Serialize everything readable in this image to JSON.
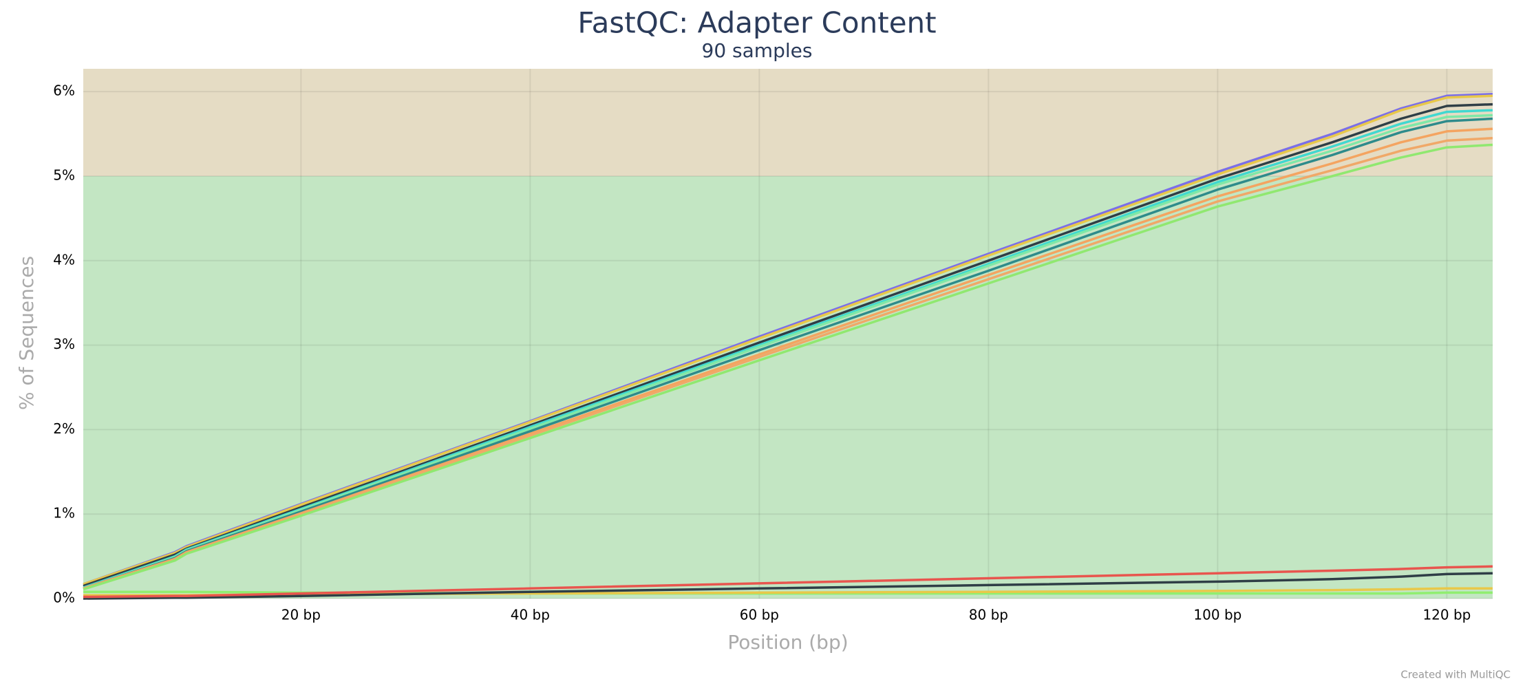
{
  "chart_data": {
    "type": "line",
    "title": "FastQC: Adapter Content",
    "subtitle": "90 samples",
    "x_label": "Position (bp)",
    "y_label": "% of Sequences",
    "footer": "Created with MultiQC",
    "xlim": [
      1,
      124
    ],
    "ylim": [
      0,
      6.27
    ],
    "xticks": [
      {
        "value": 20,
        "label": "20 bp"
      },
      {
        "value": 40,
        "label": "40 bp"
      },
      {
        "value": 60,
        "label": "60 bp"
      },
      {
        "value": 80,
        "label": "80 bp"
      },
      {
        "value": 100,
        "label": "100 bp"
      },
      {
        "value": 120,
        "label": "120 bp"
      }
    ],
    "yticks": [
      {
        "value": 0,
        "label": "0%"
      },
      {
        "value": 1,
        "label": "1%"
      },
      {
        "value": 2,
        "label": "2%"
      },
      {
        "value": 3,
        "label": "3%"
      },
      {
        "value": 4,
        "label": "4%"
      },
      {
        "value": 5,
        "label": "5%"
      },
      {
        "value": 6,
        "label": "6%"
      }
    ],
    "grid": true,
    "plot_bands": [
      {
        "from": 0,
        "to": 5,
        "color": "#c3e6c3"
      },
      {
        "from": 5,
        "to": 6.27,
        "color": "#e5dcc4"
      }
    ],
    "x": [
      1,
      9,
      10,
      20,
      40,
      60,
      80,
      100,
      110,
      116,
      120,
      124
    ],
    "series": [
      {
        "color": "#7b6fe8",
        "values": [
          0.17,
          0.55,
          0.62,
          1.12,
          2.1,
          3.1,
          4.08,
          5.05,
          5.5,
          5.8,
          5.95,
          5.97
        ]
      },
      {
        "color": "#e8c84a",
        "values": [
          0.17,
          0.54,
          0.61,
          1.11,
          2.09,
          3.08,
          4.06,
          5.02,
          5.47,
          5.78,
          5.93,
          5.95
        ]
      },
      {
        "color": "#2f3e46",
        "values": [
          0.15,
          0.52,
          0.59,
          1.08,
          2.05,
          3.03,
          4.0,
          4.97,
          5.4,
          5.68,
          5.83,
          5.85
        ]
      },
      {
        "color": "#40d8d0",
        "values": [
          0.13,
          0.5,
          0.58,
          1.06,
          2.03,
          3.0,
          3.96,
          4.93,
          5.35,
          5.62,
          5.76,
          5.78
        ]
      },
      {
        "color": "#7fe8a8",
        "values": [
          0.12,
          0.49,
          0.57,
          1.05,
          2.01,
          2.98,
          3.94,
          4.9,
          5.3,
          5.57,
          5.7,
          5.72
        ]
      },
      {
        "color": "#2e8b8b",
        "values": [
          0.12,
          0.48,
          0.56,
          1.03,
          1.98,
          2.94,
          3.88,
          4.84,
          5.25,
          5.52,
          5.65,
          5.68
        ]
      },
      {
        "color": "#f4a460",
        "values": [
          0.12,
          0.47,
          0.55,
          1.01,
          1.95,
          2.89,
          3.83,
          4.76,
          5.15,
          5.4,
          5.53,
          5.56
        ]
      },
      {
        "color": "#f0a868",
        "values": [
          0.12,
          0.46,
          0.54,
          1.0,
          1.93,
          2.86,
          3.78,
          4.7,
          5.07,
          5.3,
          5.42,
          5.45
        ]
      },
      {
        "color": "#90e870",
        "values": [
          0.11,
          0.45,
          0.53,
          0.98,
          1.9,
          2.82,
          3.73,
          4.64,
          5.0,
          5.22,
          5.34,
          5.37
        ]
      },
      {
        "color": "#90ee70",
        "values": [
          0.08,
          0.08,
          0.08,
          0.07,
          0.06,
          0.06,
          0.06,
          0.06,
          0.06,
          0.06,
          0.07,
          0.07
        ]
      },
      {
        "color": "#e8c84a",
        "values": [
          0.04,
          0.04,
          0.04,
          0.05,
          0.06,
          0.07,
          0.08,
          0.09,
          0.1,
          0.11,
          0.12,
          0.12
        ]
      },
      {
        "color": "#2f3e46",
        "values": [
          0.0,
          0.01,
          0.01,
          0.03,
          0.08,
          0.12,
          0.16,
          0.2,
          0.23,
          0.26,
          0.29,
          0.3
        ]
      },
      {
        "color": "#e8554e",
        "values": [
          0.02,
          0.03,
          0.03,
          0.06,
          0.12,
          0.18,
          0.24,
          0.3,
          0.33,
          0.35,
          0.37,
          0.38
        ]
      }
    ]
  }
}
